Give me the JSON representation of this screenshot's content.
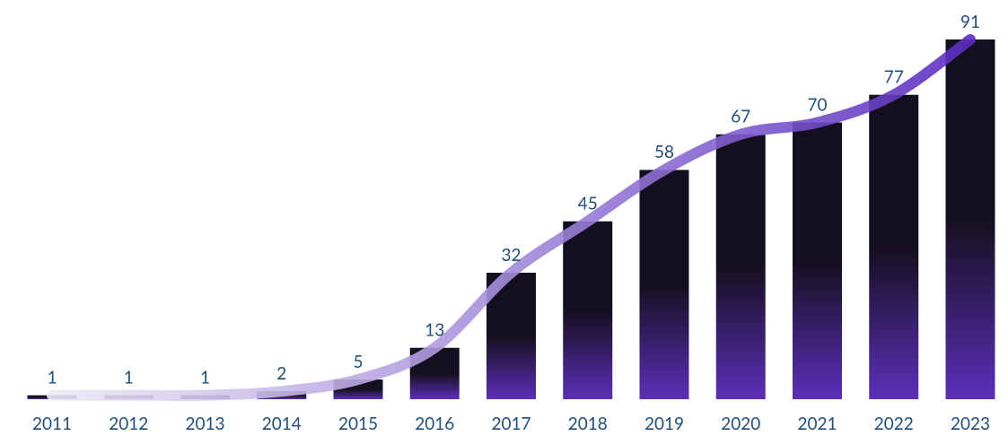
{
  "chart_data": {
    "type": "bar",
    "categories": [
      "2011",
      "2012",
      "2013",
      "2014",
      "2015",
      "2016",
      "2017",
      "2018",
      "2019",
      "2020",
      "2021",
      "2022",
      "2023"
    ],
    "values": [
      1,
      1,
      1,
      2,
      5,
      13,
      32,
      45,
      58,
      67,
      70,
      77,
      91
    ],
    "bar_colors": [
      "#140f1e",
      "#5c2fb8"
    ],
    "line_colors": [
      "#f1eef7",
      "#5a2cc0"
    ]
  }
}
